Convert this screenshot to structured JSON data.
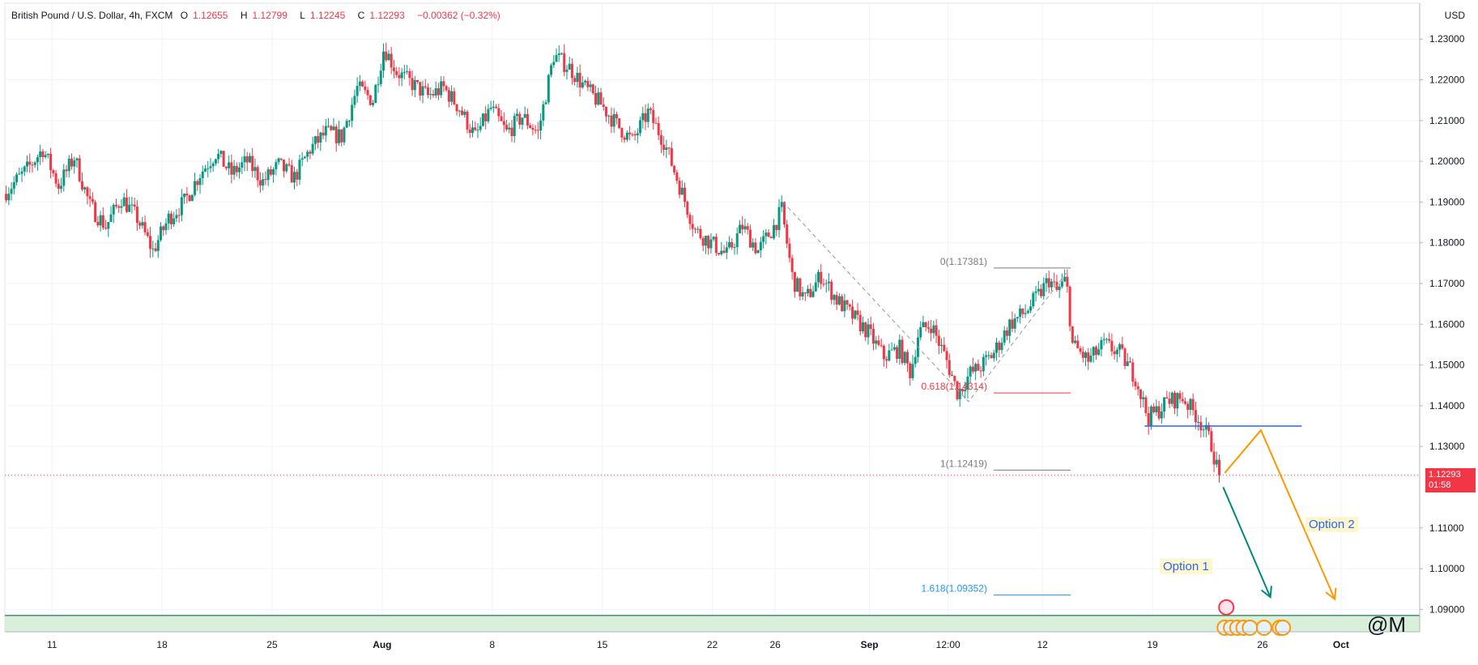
{
  "legend": {
    "symbol": "British Pound / U.S. Dollar, 4h, FXCM",
    "open_label": "O",
    "open": "1.12655",
    "high_label": "H",
    "high": "1.12799",
    "low_label": "L",
    "low": "1.12245",
    "close_label": "C",
    "close": "1.12293",
    "change": "−0.00362 (−0.32%)"
  },
  "currency": "USD",
  "price_tag": {
    "price": "1.12293",
    "countdown": "01:58"
  },
  "options": {
    "option1": "Option 1",
    "option2": "Option 2"
  },
  "watermark": "@M",
  "chart_data": {
    "type": "candlestick",
    "title": "",
    "ylim": [
      1.0845,
      1.238
    ],
    "y_ticks": [
      1.23,
      1.22,
      1.21,
      1.2,
      1.19,
      1.18,
      1.17,
      1.16,
      1.15,
      1.14,
      1.13,
      1.11,
      1.1,
      1.09
    ],
    "y_tick_labels": [
      "1.23000",
      "1.22000",
      "1.21000",
      "1.20000",
      "1.19000",
      "1.18000",
      "1.17000",
      "1.16000",
      "1.15000",
      "1.14000",
      "1.13000",
      "1.11000",
      "1.10000",
      "1.09000"
    ],
    "x_labels": [
      {
        "label": "11",
        "day": 11
      },
      {
        "label": "18",
        "day": 18
      },
      {
        "label": "25",
        "day": 25
      },
      {
        "label": "Aug",
        "day": 32
      },
      {
        "label": "8",
        "day": 39
      },
      {
        "label": "15",
        "day": 46
      },
      {
        "label": "22",
        "day": 53
      },
      {
        "label": "26",
        "day": 57
      },
      {
        "label": "Sep",
        "day": 63
      },
      {
        "label": "12:00",
        "day": 68
      },
      {
        "label": "12",
        "day": 74
      },
      {
        "label": "19",
        "day": 81
      },
      {
        "label": "26",
        "day": 88
      },
      {
        "label": "Oct",
        "day": 93
      }
    ],
    "x_range_days": [
      8.0,
      98.0
    ],
    "path_points": [
      [
        8.0,
        1.192
      ],
      [
        9.5,
        1.198
      ],
      [
        10.5,
        1.203
      ],
      [
        11.5,
        1.194
      ],
      [
        12.5,
        1.201
      ],
      [
        13.5,
        1.189
      ],
      [
        14.5,
        1.184
      ],
      [
        15.5,
        1.191
      ],
      [
        16.5,
        1.186
      ],
      [
        17.5,
        1.178
      ],
      [
        18.5,
        1.186
      ],
      [
        19.5,
        1.19
      ],
      [
        20.5,
        1.197
      ],
      [
        21.5,
        1.202
      ],
      [
        22.5,
        1.197
      ],
      [
        23.5,
        1.2
      ],
      [
        24.5,
        1.195
      ],
      [
        25.5,
        1.199
      ],
      [
        26.5,
        1.196
      ],
      [
        27.5,
        1.203
      ],
      [
        28.5,
        1.207
      ],
      [
        29.5,
        1.206
      ],
      [
        30.5,
        1.218
      ],
      [
        31.5,
        1.215
      ],
      [
        32.2,
        1.228
      ],
      [
        33.0,
        1.222
      ],
      [
        34.0,
        1.219
      ],
      [
        35.0,
        1.216
      ],
      [
        36.0,
        1.218
      ],
      [
        37.0,
        1.213
      ],
      [
        38.0,
        1.206
      ],
      [
        39.0,
        1.213
      ],
      [
        40.0,
        1.207
      ],
      [
        41.0,
        1.211
      ],
      [
        42.0,
        1.207
      ],
      [
        43.0,
        1.226
      ],
      [
        44.0,
        1.223
      ],
      [
        45.0,
        1.218
      ],
      [
        46.0,
        1.214
      ],
      [
        47.0,
        1.209
      ],
      [
        48.0,
        1.205
      ],
      [
        49.0,
        1.212
      ],
      [
        50.0,
        1.205
      ],
      [
        51.0,
        1.194
      ],
      [
        52.0,
        1.183
      ],
      [
        53.0,
        1.18
      ],
      [
        54.0,
        1.177
      ],
      [
        55.0,
        1.184
      ],
      [
        56.0,
        1.178
      ],
      [
        57.0,
        1.184
      ],
      [
        57.5,
        1.188
      ],
      [
        58.2,
        1.171
      ],
      [
        59.0,
        1.166
      ],
      [
        60.0,
        1.172
      ],
      [
        61.0,
        1.166
      ],
      [
        62.0,
        1.162
      ],
      [
        63.0,
        1.158
      ],
      [
        64.0,
        1.152
      ],
      [
        65.0,
        1.154
      ],
      [
        65.7,
        1.148
      ],
      [
        66.2,
        1.158
      ],
      [
        67.0,
        1.16
      ],
      [
        68.0,
        1.151
      ],
      [
        68.7,
        1.143
      ],
      [
        69.5,
        1.148
      ],
      [
        70.0,
        1.149
      ],
      [
        71.0,
        1.153
      ],
      [
        72.0,
        1.16
      ],
      [
        73.0,
        1.163
      ],
      [
        74.0,
        1.168
      ],
      [
        74.5,
        1.171
      ],
      [
        75.0,
        1.168
      ],
      [
        75.6,
        1.171
      ],
      [
        76.0,
        1.155
      ],
      [
        77.0,
        1.151
      ],
      [
        78.0,
        1.155
      ],
      [
        79.0,
        1.153
      ],
      [
        80.0,
        1.147
      ],
      [
        80.8,
        1.137
      ],
      [
        81.5,
        1.139
      ],
      [
        82.0,
        1.141
      ],
      [
        83.0,
        1.142
      ],
      [
        84.0,
        1.137
      ],
      [
        84.8,
        1.131
      ],
      [
        85.3,
        1.1229
      ]
    ],
    "fibonacci": [
      {
        "label": "0(1.17381)",
        "level": 1.17381,
        "color": "#787b86"
      },
      {
        "label": "0.618(1.14314)",
        "level": 1.14314,
        "color": "#f23645"
      },
      {
        "label": "1(1.12419)",
        "level": 1.12419,
        "color": "#787b86"
      },
      {
        "label": "1.618(1.09352)",
        "level": 1.09352,
        "color": "#2196f3"
      }
    ],
    "support_level": 1.135,
    "support_zone": [
      1.0845,
      1.0885
    ],
    "dashed_swing": [
      [
        57.5,
        1.19
      ],
      [
        69.3,
        1.141
      ],
      [
        75.6,
        1.173
      ]
    ],
    "last_price": 1.12293,
    "arrows": [
      {
        "name": "Option 1",
        "color": "#00897b",
        "points": [
          [
            85.5,
            1.12
          ],
          [
            88.5,
            1.093
          ]
        ]
      },
      {
        "name": "Option 2",
        "color": "#ff9800",
        "points": [
          [
            85.6,
            1.1235
          ],
          [
            87.9,
            1.134
          ],
          [
            92.6,
            1.0925
          ]
        ]
      }
    ]
  }
}
